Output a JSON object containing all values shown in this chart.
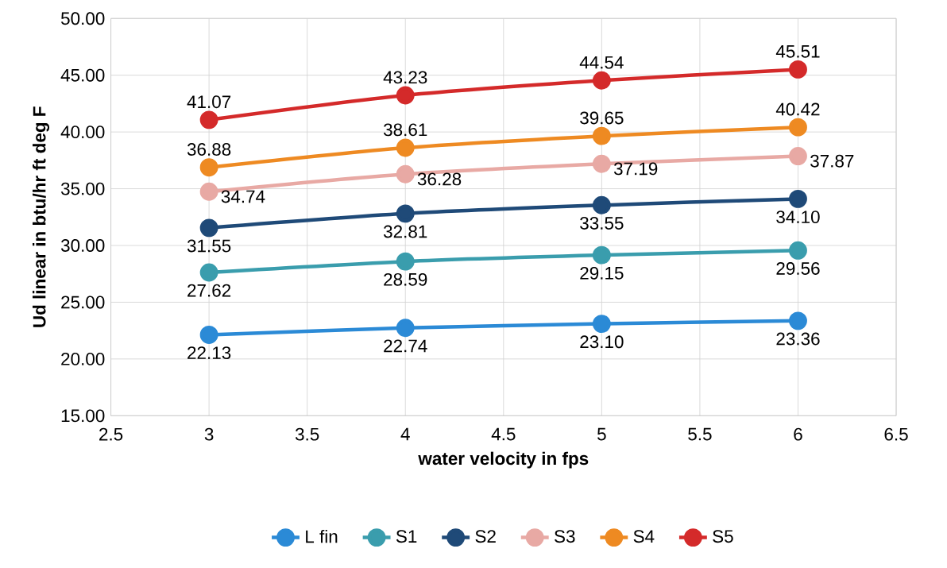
{
  "chart_data": {
    "type": "line",
    "xlabel": "water velocity in fps",
    "ylabel": "Ud linear in btu/hr ft deg F",
    "x": [
      3,
      4,
      5,
      6
    ],
    "series": [
      {
        "name": "L fin",
        "color": "#2b8ad6",
        "values": [
          22.13,
          22.74,
          23.1,
          23.36
        ],
        "value_labels": [
          "22.13",
          "22.74",
          "23.10",
          "23.36"
        ]
      },
      {
        "name": "S1",
        "color": "#3a9dad",
        "values": [
          27.62,
          28.59,
          29.15,
          29.56
        ],
        "value_labels": [
          "27.62",
          "28.59",
          "29.15",
          "29.56"
        ]
      },
      {
        "name": "S2",
        "color": "#1f4a78",
        "values": [
          31.55,
          32.81,
          33.55,
          34.1
        ],
        "value_labels": [
          "31.55",
          "32.81",
          "33.55",
          "34.10"
        ]
      },
      {
        "name": "S3",
        "color": "#e8a9a4",
        "values": [
          34.74,
          36.28,
          37.19,
          37.87
        ],
        "value_labels": [
          "34.74",
          "36.28",
          "37.19",
          "37.87"
        ]
      },
      {
        "name": "S4",
        "color": "#ee8a22",
        "values": [
          36.88,
          38.61,
          39.65,
          40.42
        ],
        "value_labels": [
          "36.88",
          "38.61",
          "39.65",
          "40.42"
        ]
      },
      {
        "name": "S5",
        "color": "#d42a2a",
        "values": [
          41.07,
          43.23,
          44.54,
          45.51
        ],
        "value_labels": [
          "41.07",
          "43.23",
          "44.54",
          "45.51"
        ]
      }
    ],
    "xlim": [
      2.5,
      6.5
    ],
    "xticks": [
      2.5,
      3,
      3.5,
      4,
      4.5,
      5,
      5.5,
      6,
      6.5
    ],
    "ylim": [
      15,
      50
    ],
    "yticks": [
      {
        "value": 15,
        "label": "15.00"
      },
      {
        "value": 20,
        "label": "20.00"
      },
      {
        "value": 25,
        "label": "25.00"
      },
      {
        "value": 30,
        "label": "30.00"
      },
      {
        "value": 35,
        "label": "35.00"
      },
      {
        "value": 40,
        "label": "40.00"
      },
      {
        "value": 45,
        "label": "45.00"
      },
      {
        "value": 50,
        "label": "50.00"
      }
    ],
    "grid": true,
    "legend": "bottom",
    "marker": "circle",
    "line_style": "solid"
  }
}
